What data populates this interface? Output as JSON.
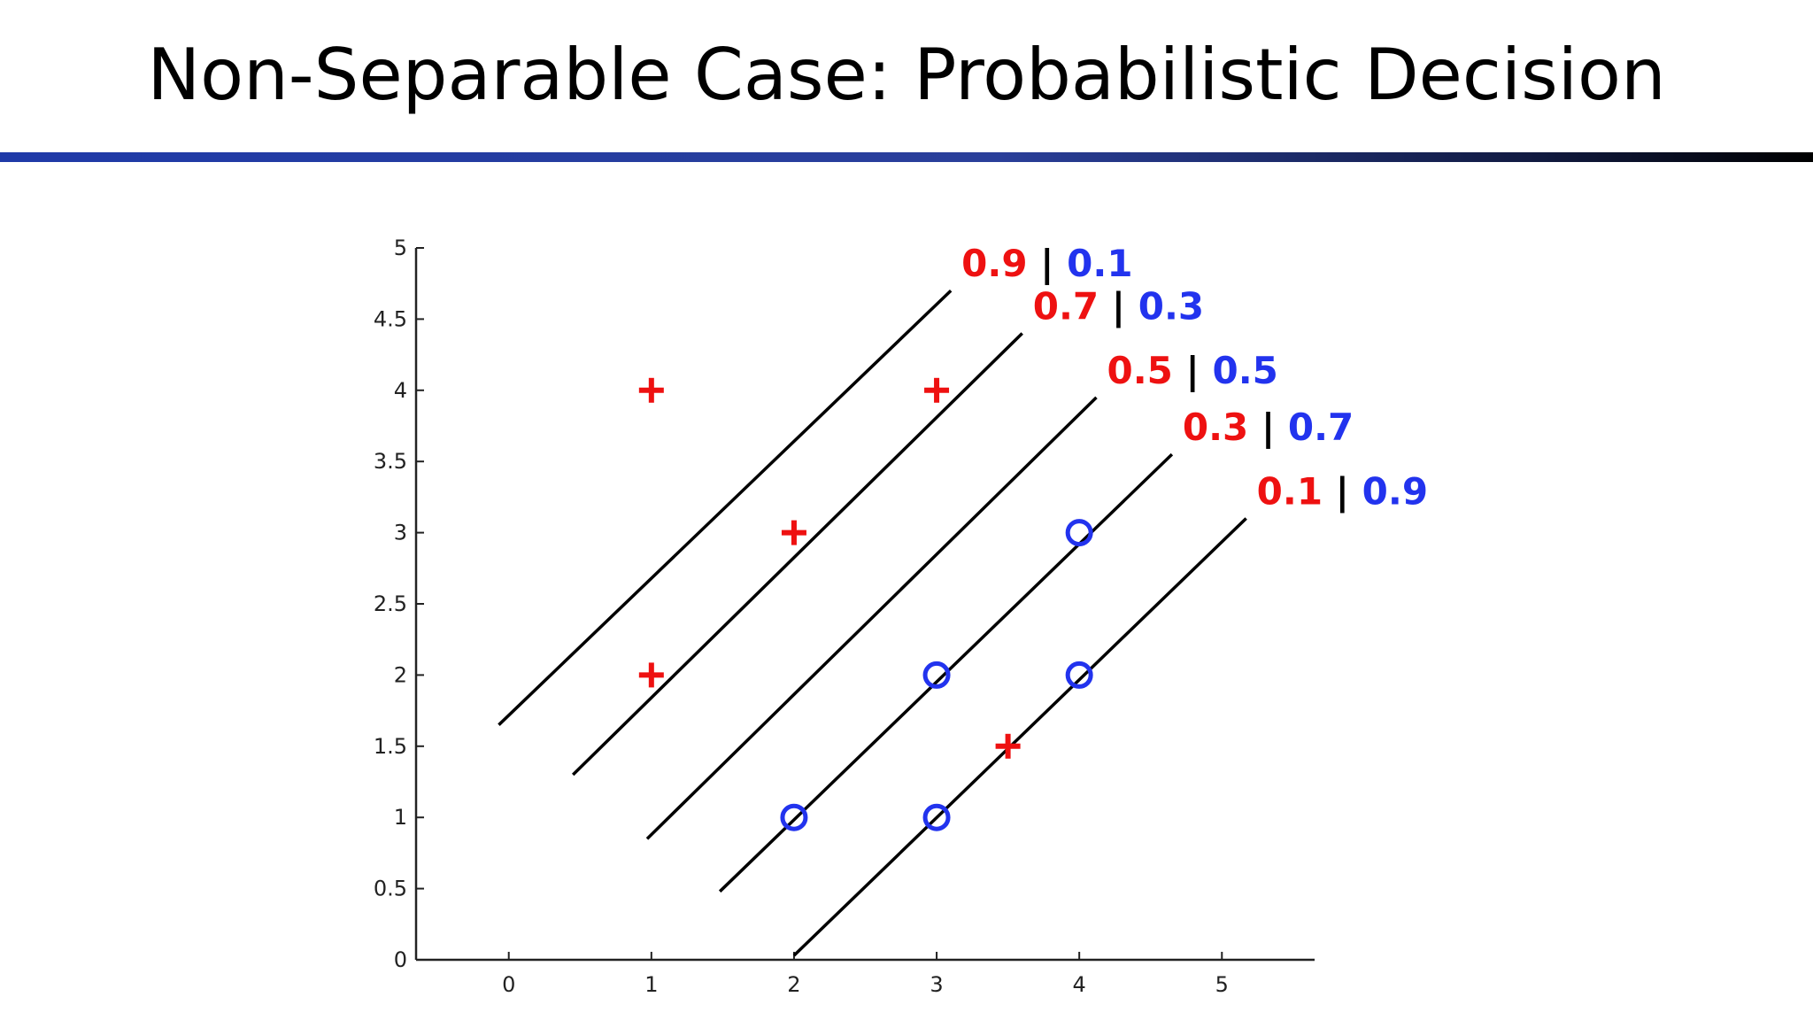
{
  "slide": {
    "title": "Non-Separable Case: Probabilistic Decision"
  },
  "colors": {
    "positive": "#ee1111",
    "negative": "#2233ee",
    "separator": "#000000",
    "rule_start": "#1f3aa8",
    "rule_end": "#000000"
  },
  "chart_data": {
    "type": "scatter",
    "title": "",
    "xlabel": "",
    "ylabel": "",
    "xlim": [
      -0.65,
      5.65
    ],
    "ylim": [
      0,
      5
    ],
    "xticks": [
      0,
      1,
      2,
      3,
      4,
      5
    ],
    "yticks": [
      0,
      0.5,
      1,
      1.5,
      2,
      2.5,
      3,
      3.5,
      4,
      4.5,
      5
    ],
    "ytick_labels": [
      "0",
      "0.5",
      "1",
      "1.5",
      "2",
      "2.5",
      "3",
      "3.5",
      "4",
      "4.5",
      "5"
    ],
    "grid": false,
    "series": [
      {
        "marker": "plus",
        "color": "#ee1111",
        "points": [
          [
            1,
            4
          ],
          [
            3,
            4
          ],
          [
            2,
            3
          ],
          [
            1,
            2
          ],
          [
            3.5,
            1.5
          ]
        ]
      },
      {
        "marker": "circle",
        "color": "#2233ee",
        "points": [
          [
            4,
            3
          ],
          [
            3,
            2
          ],
          [
            4,
            2
          ],
          [
            2,
            1
          ],
          [
            3,
            1
          ]
        ]
      }
    ],
    "lines": [
      {
        "from": [
          -0.07,
          1.65
        ],
        "to": [
          3.1,
          4.7
        ],
        "label_pos": "0.9",
        "label_neg": "0.1"
      },
      {
        "from": [
          0.45,
          1.3
        ],
        "to": [
          3.6,
          4.4
        ],
        "label_pos": "0.7",
        "label_neg": "0.3"
      },
      {
        "from": [
          0.97,
          0.85
        ],
        "to": [
          4.12,
          3.95
        ],
        "label_pos": "0.5",
        "label_neg": "0.5"
      },
      {
        "from": [
          1.48,
          0.48
        ],
        "to": [
          4.65,
          3.55
        ],
        "label_pos": "0.3",
        "label_neg": "0.7"
      },
      {
        "from": [
          2.0,
          0.03
        ],
        "to": [
          5.17,
          3.1
        ],
        "label_pos": "0.1",
        "label_neg": "0.9"
      }
    ],
    "label_separator": "|"
  }
}
